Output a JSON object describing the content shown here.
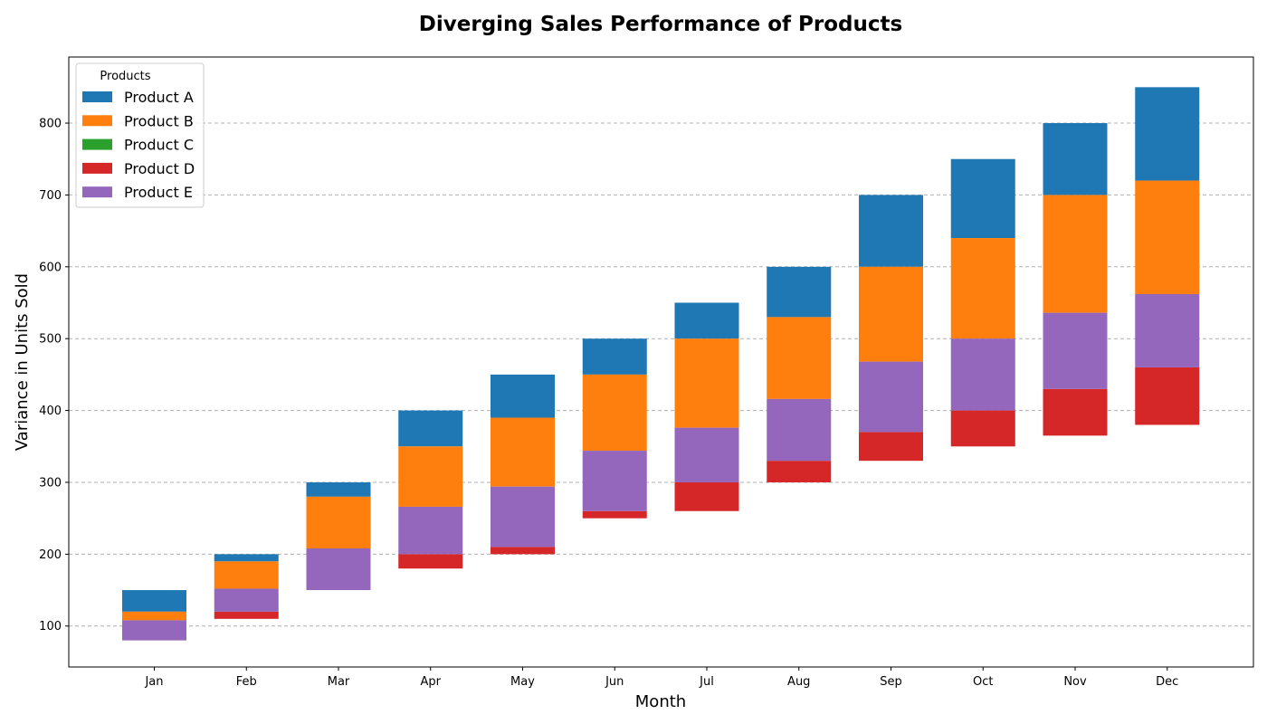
{
  "chart_data": {
    "type": "bar",
    "stacked": true,
    "title": "Diverging Sales Performance of Products",
    "xlabel": "Month",
    "ylabel": "Variance in Units Sold",
    "categories": [
      "Jan",
      "Feb",
      "Mar",
      "Apr",
      "May",
      "Jun",
      "Jul",
      "Aug",
      "Sep",
      "Oct",
      "Nov",
      "Dec"
    ],
    "ylim": [
      43,
      892
    ],
    "yticks": [
      100,
      200,
      300,
      400,
      500,
      600,
      700,
      800
    ],
    "grid": "horizontal dashed",
    "legend": {
      "title": "Products",
      "placement": "top-left"
    },
    "series": [
      {
        "name": "Product A",
        "color": "#1f77b4",
        "bottom": [
          120,
          190,
          280,
          350,
          390,
          450,
          500,
          530,
          600,
          640,
          700,
          720
        ],
        "top": [
          150,
          200,
          300,
          400,
          450,
          500,
          550,
          600,
          700,
          750,
          800,
          850
        ]
      },
      {
        "name": "Product B",
        "color": "#ff7f0e",
        "bottom": [
          108,
          152,
          208,
          266,
          294,
          344,
          376,
          416,
          468,
          500,
          536,
          562
        ],
        "top": [
          120,
          190,
          280,
          350,
          390,
          450,
          500,
          530,
          600,
          640,
          700,
          720
        ]
      },
      {
        "name": "Product C",
        "color": "#2ca02c",
        "bottom": [],
        "top": []
      },
      {
        "name": "Product D",
        "color": "#d62728",
        "bottom": [
          null,
          110,
          null,
          180,
          200,
          250,
          260,
          300,
          330,
          350,
          365,
          380
        ],
        "top": [
          null,
          120,
          null,
          200,
          210,
          260,
          300,
          330,
          370,
          400,
          430,
          460
        ]
      },
      {
        "name": "Product E",
        "color": "#9467bd",
        "bottom": [
          80,
          120,
          150,
          200,
          210,
          260,
          300,
          330,
          370,
          400,
          430,
          460
        ],
        "top": [
          108,
          152,
          208,
          266,
          294,
          344,
          376,
          416,
          468,
          500,
          536,
          562
        ]
      }
    ]
  }
}
